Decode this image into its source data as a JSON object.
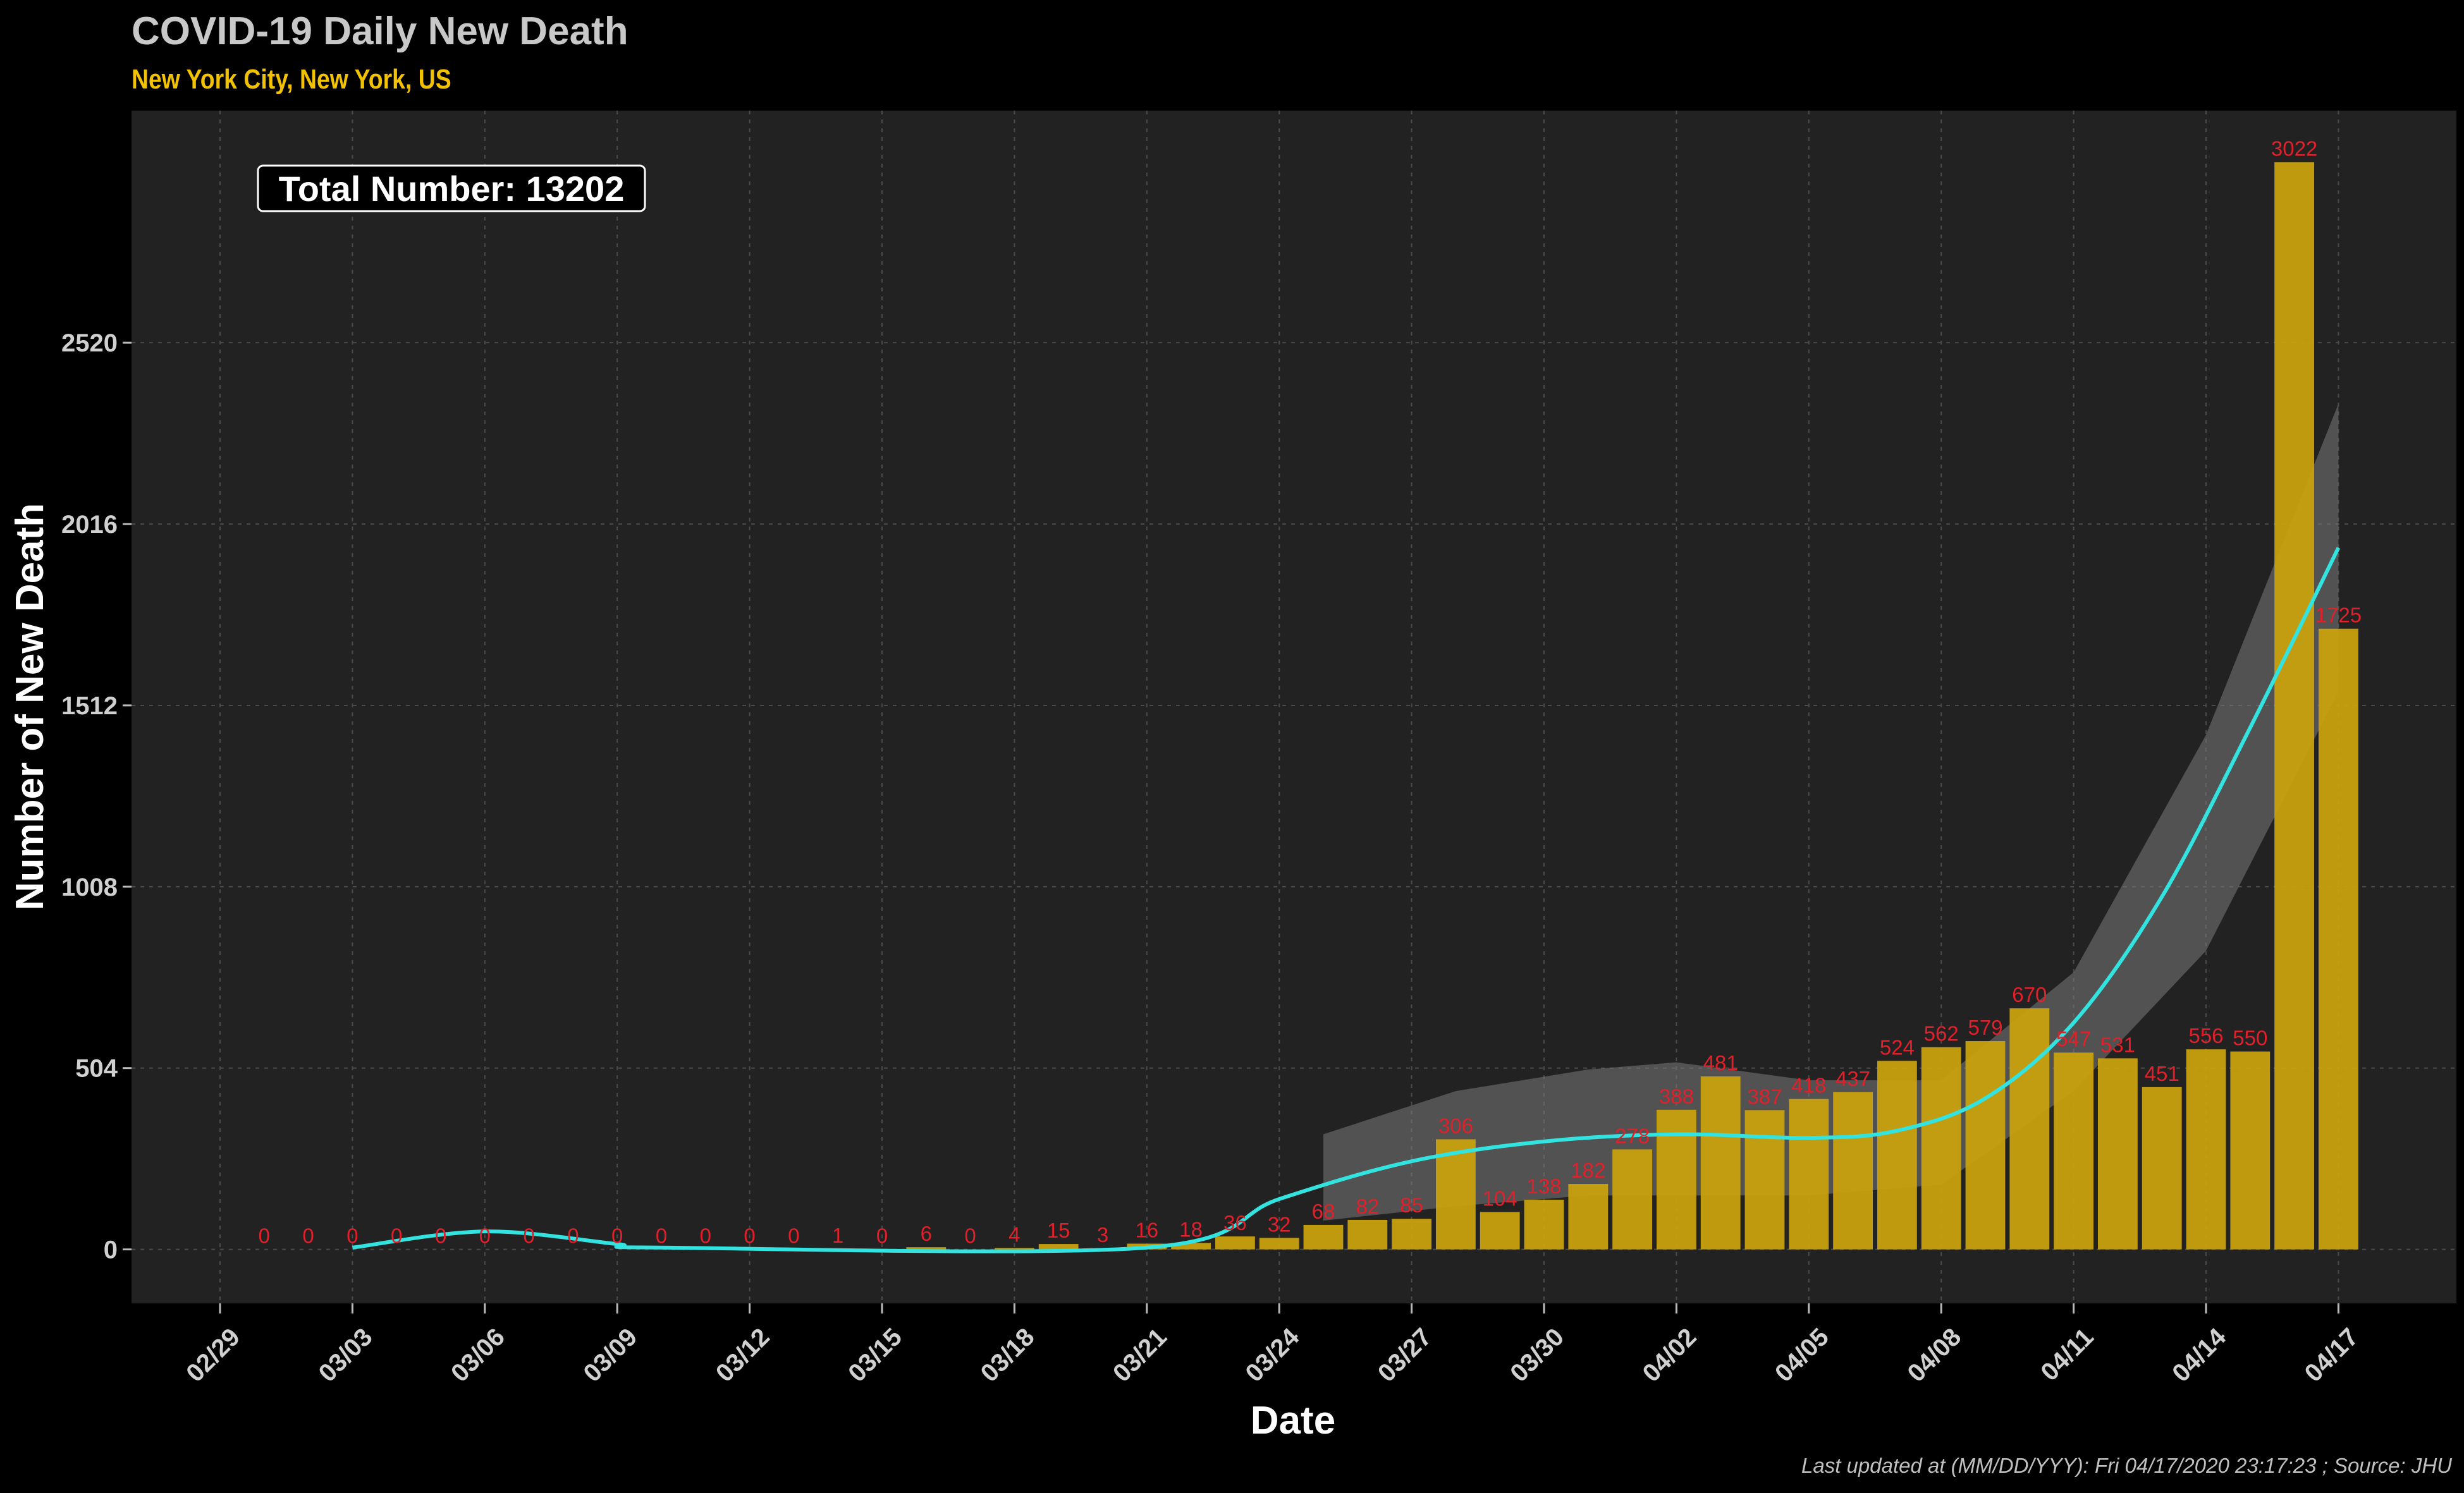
{
  "chart_data": {
    "type": "bar",
    "title": "COVID-19 Daily New Death",
    "subtitle": "New York City, New York, US",
    "xlabel": "Date",
    "ylabel": "Number of New Death",
    "annotation": "Total Number: 13202",
    "footer": "Last updated at (MM/DD/YYY):  Fri 04/17/2020 23:17:23 ; Source: JHU",
    "x_ticks": [
      "02/29",
      "03/03",
      "03/06",
      "03/09",
      "03/12",
      "03/15",
      "03/18",
      "03/21",
      "03/24",
      "03/27",
      "03/30",
      "04/02",
      "04/05",
      "04/08",
      "04/11",
      "04/14",
      "04/17"
    ],
    "y_ticks": [
      0,
      504,
      1008,
      1512,
      2016,
      2520
    ],
    "ylim": [
      -150,
      3165
    ],
    "grid": true,
    "legend": "none",
    "categories": [
      "03/01",
      "03/02",
      "03/03",
      "03/04",
      "03/05",
      "03/06",
      "03/07",
      "03/08",
      "03/09",
      "03/10",
      "03/11",
      "03/12",
      "03/13",
      "03/14",
      "03/15",
      "03/16",
      "03/17",
      "03/18",
      "03/19",
      "03/20",
      "03/21",
      "03/22",
      "03/23",
      "03/24",
      "03/25",
      "03/26",
      "03/27",
      "03/28",
      "03/29",
      "03/30",
      "03/31",
      "04/01",
      "04/02",
      "04/03",
      "04/04",
      "04/05",
      "04/06",
      "04/07",
      "04/08",
      "04/09",
      "04/10",
      "04/11",
      "04/12",
      "04/13",
      "04/14",
      "04/15",
      "04/16",
      "04/17"
    ],
    "values": [
      0,
      0,
      0,
      0,
      0,
      0,
      0,
      0,
      0,
      0,
      0,
      0,
      0,
      1,
      0,
      6,
      0,
      4,
      15,
      3,
      16,
      18,
      36,
      32,
      68,
      82,
      85,
      306,
      104,
      138,
      182,
      278,
      388,
      481,
      387,
      418,
      437,
      524,
      562,
      579,
      670,
      547,
      531,
      451,
      556,
      550,
      3022,
      1725
    ],
    "trend": {
      "dates": [
        "03/03",
        "03/06",
        "03/09",
        "03/10",
        "03/21",
        "03/24",
        "03/27",
        "03/30",
        "04/02",
        "04/05",
        "04/07",
        "04/09",
        "04/11",
        "04/13",
        "04/15",
        "04/17"
      ],
      "values": [
        5,
        50,
        15,
        5,
        5,
        140,
        245,
        300,
        320,
        310,
        330,
        420,
        630,
        980,
        1450,
        1950
      ],
      "band_dates": [
        "03/25",
        "03/28",
        "03/31",
        "04/02",
        "04/05",
        "04/08",
        "04/11",
        "04/14",
        "04/17"
      ],
      "band_upper": [
        320,
        440,
        500,
        520,
        470,
        470,
        770,
        1430,
        2350
      ],
      "band_lower": [
        80,
        120,
        150,
        150,
        150,
        180,
        440,
        830,
        1550
      ]
    },
    "colors": {
      "background": "#000000",
      "panel": "#222222",
      "bars": "#c8a00e",
      "bar_labels": "#e0202a",
      "trend_line": "#33e3e0",
      "band": "#7a7a7a",
      "title": "#c8c8c8",
      "subtitle": "#f2c200",
      "axis_text": "#d0d0d0",
      "axis_title": "#ffffff",
      "footer": "#c0c0c0"
    }
  }
}
